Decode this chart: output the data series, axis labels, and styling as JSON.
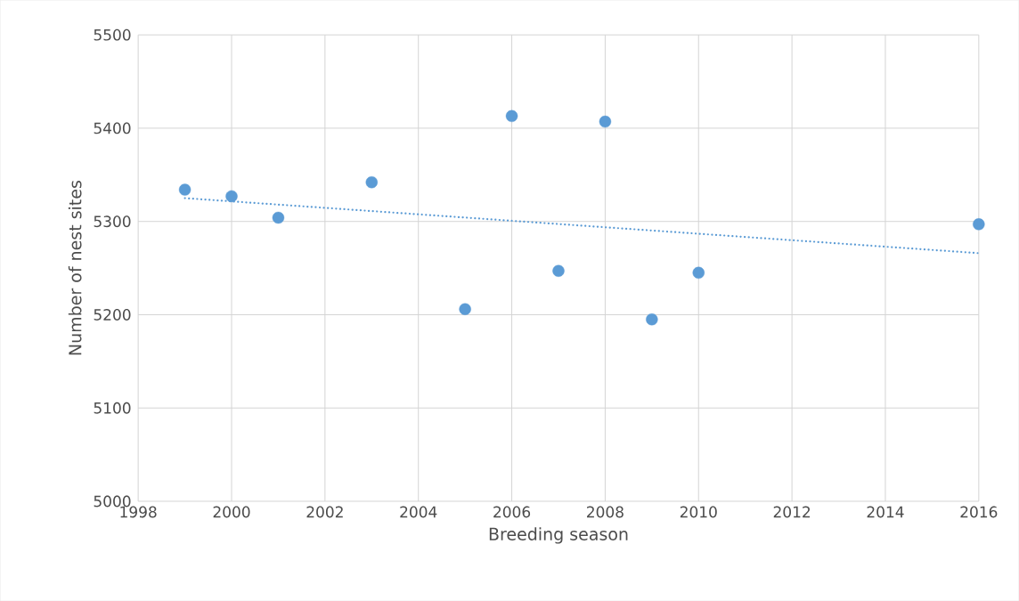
{
  "chart_data": {
    "type": "scatter",
    "xlabel": "Breeding season",
    "ylabel": "Number of nest sites",
    "xlim": [
      1998,
      2016
    ],
    "xticks": [
      1998,
      2000,
      2002,
      2004,
      2006,
      2008,
      2010,
      2012,
      2014,
      2016
    ],
    "ylim": [
      5000,
      5500
    ],
    "yticks": [
      5000,
      5100,
      5200,
      5300,
      5400,
      5500
    ],
    "grid": true,
    "series": [
      {
        "color": "#5b9bd5",
        "marker": "circle",
        "x": [
          1999,
          2000,
          2001,
          2003,
          2005,
          2006,
          2007,
          2008,
          2009,
          2010,
          2016
        ],
        "values": [
          5334,
          5327,
          5304,
          5342,
          5206,
          5413,
          5247,
          5407,
          5195,
          5245,
          5297
        ]
      },
      {
        "type": "line",
        "color": "#5b9bd5",
        "marker": "none",
        "line_style": "dotted",
        "x": [
          1999,
          2016
        ],
        "values": [
          5325,
          5266
        ]
      }
    ]
  }
}
